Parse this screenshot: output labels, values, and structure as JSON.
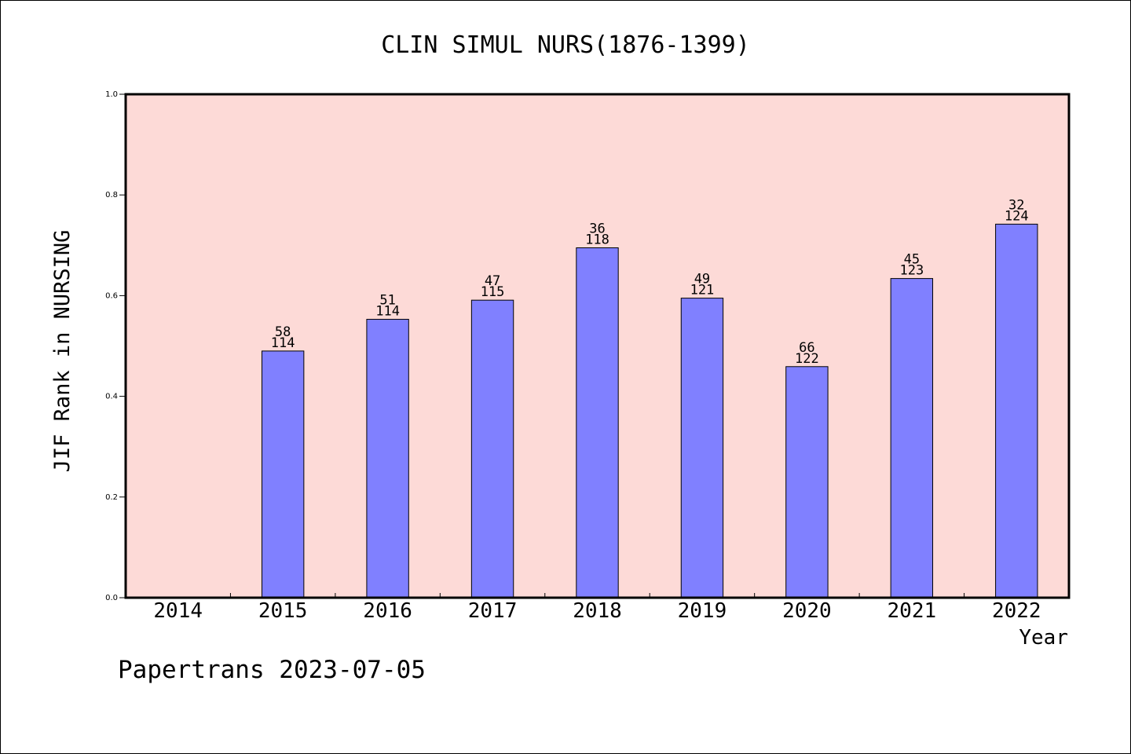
{
  "chart_data": {
    "type": "bar",
    "title": "CLIN SIMUL NURS(1876-1399)",
    "xlabel": "Year",
    "ylabel": "JIF Rank in NURSING",
    "categories": [
      "2014",
      "2015",
      "2016",
      "2017",
      "2018",
      "2019",
      "2020",
      "2021",
      "2022"
    ],
    "values": [
      null,
      0.49,
      0.553,
      0.591,
      0.695,
      0.595,
      0.459,
      0.634,
      0.742
    ],
    "ranks": [
      null,
      "58",
      "51",
      "47",
      "36",
      "49",
      "66",
      "45",
      "32"
    ],
    "totals": [
      null,
      "114",
      "114",
      "115",
      "118",
      "121",
      "122",
      "123",
      "124"
    ],
    "ylim": [
      0,
      1.0
    ],
    "yticks": [
      "0.0",
      "0.2",
      "0.4",
      "0.6",
      "0.8",
      "1.0"
    ],
    "grid": false,
    "colors": {
      "plot_background": "#fddad7",
      "bar": "#8080ff"
    }
  },
  "footer": "Papertrans 2023-07-05"
}
